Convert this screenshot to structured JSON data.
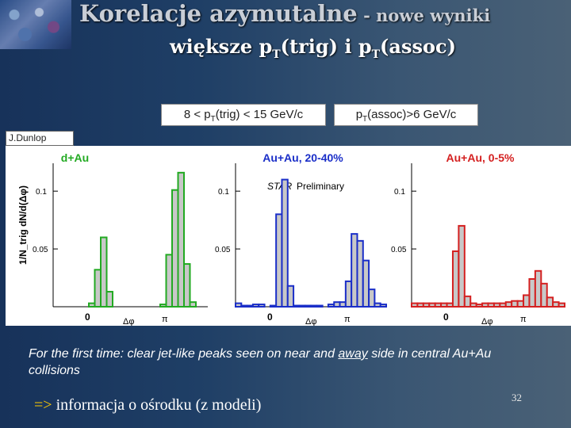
{
  "title": {
    "main_big": "Korelacje azymutalne",
    "main_small": " - nowe wyniki",
    "sub_prefix": "większe p",
    "sub_t1": "T",
    "sub_mid": "(trig) i p",
    "sub_t2": "T",
    "sub_suffix": "(assoc)"
  },
  "cuts": {
    "trig_pre": "8 < p",
    "trig_sub": "T",
    "trig_post": "(trig) < 15 GeV/c",
    "assoc_pre": "p",
    "assoc_sub": "T",
    "assoc_post": "(assoc)>6 GeV/c"
  },
  "author": "J.Dunlop",
  "plots": {
    "ylabel": "1/N_trig dN/d(Δφ)",
    "preliminary_italic": "STAR",
    "preliminary_rest": " Preliminary",
    "panels": [
      {
        "label": "d+Au",
        "color": "#22aa22",
        "ytick_top": "0.1",
        "ytick_mid": "0.05",
        "ytick_zero": "0",
        "xlabel": "Δφ",
        "pi": "π"
      },
      {
        "label": "Au+Au, 20-40%",
        "color": "#1a2ec8",
        "ytick_top": "0.1",
        "ytick_mid": "0.05",
        "ytick_zero": "0",
        "xlabel": "Δφ",
        "pi": "π"
      },
      {
        "label": "Au+Au, 0-5%",
        "color": "#d42020",
        "ytick_top": "0.1",
        "ytick_mid": "0.05",
        "ytick_zero": "0",
        "xlabel": "Δφ",
        "pi": "π"
      }
    ]
  },
  "chart_data": {
    "type": "bar",
    "x_range": [
      -1.57,
      4.71
    ],
    "ylim": [
      0,
      0.12
    ],
    "bins": 26,
    "series": [
      {
        "name": "d+Au",
        "values": [
          0,
          0,
          0,
          0,
          0,
          0,
          0.003,
          0.032,
          0.06,
          0.013,
          0,
          0,
          0,
          0,
          0,
          0,
          0,
          0,
          0.002,
          0.045,
          0.101,
          0.116,
          0.037,
          0.004,
          0,
          0
        ]
      },
      {
        "name": "Au+Au, 20-40%",
        "values": [
          0.003,
          0.001,
          0.001,
          0.002,
          0.002,
          0,
          0.001,
          0.08,
          0.11,
          0.018,
          0.001,
          0.001,
          0.001,
          0.001,
          0.001,
          0,
          0.002,
          0.004,
          0.004,
          0.022,
          0.063,
          0.057,
          0.04,
          0.015,
          0.003,
          0.002
        ]
      },
      {
        "name": "Au+Au, 0-5%",
        "values": [
          0.003,
          0.003,
          0.003,
          0.003,
          0.003,
          0.003,
          0.003,
          0.048,
          0.07,
          0.009,
          0.003,
          0.002,
          0.003,
          0.003,
          0.003,
          0.003,
          0.004,
          0.005,
          0.005,
          0.01,
          0.024,
          0.031,
          0.02,
          0.008,
          0.004,
          0.003
        ]
      }
    ]
  },
  "caption": {
    "line_pre": "For the first time: clear jet-like peaks seen on near and ",
    "line_u": "away",
    "line_post": " side in central Au+Au collisions"
  },
  "bottom": {
    "arrow": "=>",
    "text": " informacja o ośrodku  (z modeli)"
  },
  "page_number": "32"
}
